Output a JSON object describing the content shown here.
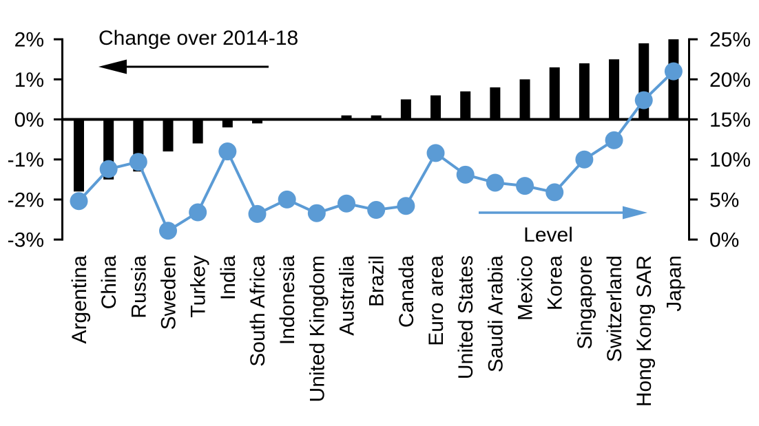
{
  "chart_data": {
    "type": "bar",
    "subtype": "combo-bar-line-dual-axis",
    "title": "Change over 2014-18",
    "categories": [
      "Argentina",
      "China",
      "Russia",
      "Sweden",
      "Turkey",
      "India",
      "South Africa",
      "Indonesia",
      "United Kingdom",
      "Australia",
      "Brazil",
      "Canada",
      "Euro area",
      "United States",
      "Saudi Arabia",
      "Mexico",
      "Korea",
      "Singapore",
      "Switzerland",
      "Hong Kong SAR",
      "Japan"
    ],
    "series": [
      {
        "name": "Change over 2014-18",
        "type": "bar",
        "axis": "left",
        "color": "#000000",
        "unit": "percentage points",
        "values": [
          -1.8,
          -1.5,
          -1.3,
          -0.8,
          -0.6,
          -0.2,
          -0.1,
          0.0,
          0.0,
          0.1,
          0.1,
          0.5,
          0.6,
          0.7,
          0.8,
          1.0,
          1.3,
          1.4,
          1.5,
          1.9,
          2.0
        ]
      },
      {
        "name": "Level",
        "type": "line",
        "axis": "right",
        "color": "#5B9BD5",
        "unit": "%",
        "values": [
          4.8,
          8.8,
          9.7,
          1.1,
          3.4,
          11.0,
          3.2,
          5.0,
          3.3,
          4.5,
          3.7,
          4.2,
          10.8,
          8.1,
          7.1,
          6.7,
          5.9,
          10.0,
          12.4,
          17.4,
          21.0
        ]
      }
    ],
    "left_axis": {
      "min": -3,
      "max": 2,
      "step": 1,
      "tick_labels": [
        "2%",
        "1%",
        "0%",
        "-1%",
        "-2%",
        "-3%"
      ]
    },
    "right_axis": {
      "min": 0,
      "max": 25,
      "step": 5,
      "tick_labels": [
        "25%",
        "20%",
        "15%",
        "10%",
        "5%",
        "0%"
      ]
    },
    "annotations": {
      "change_label": "Change over 2014-18",
      "level_label": "Level"
    },
    "grid": false,
    "legend_position": "in-chart arrows"
  },
  "colors": {
    "bar": "#000000",
    "line": "#5B9BD5",
    "axis": "#000000",
    "text": "#000000",
    "background": "#FFFFFF"
  }
}
